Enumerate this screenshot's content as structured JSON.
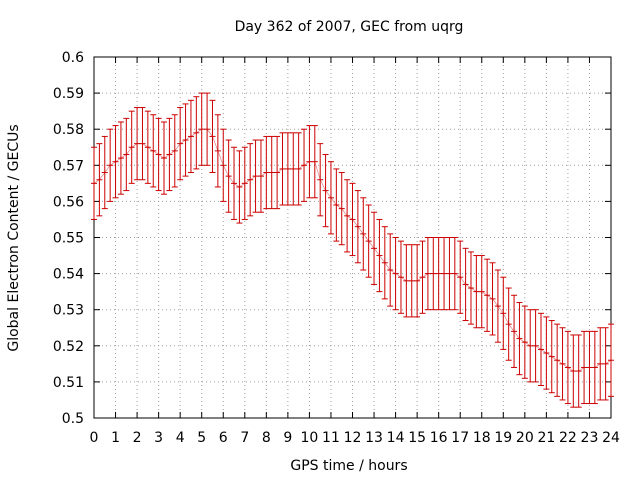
{
  "chart_data": {
    "type": "line",
    "title": "Day 362 of 2007, GEC from uqrg",
    "xlabel": "GPS time / hours",
    "ylabel": "Global Electron Content / GECUs",
    "xlim": [
      0,
      24
    ],
    "ylim": [
      0.5,
      0.6
    ],
    "xticks": [
      0,
      1,
      2,
      3,
      4,
      5,
      6,
      7,
      8,
      9,
      10,
      11,
      12,
      13,
      14,
      15,
      16,
      17,
      18,
      19,
      20,
      21,
      22,
      23,
      24
    ],
    "yticks": [
      0.5,
      0.51,
      0.52,
      0.53,
      0.54,
      0.55,
      0.56,
      0.57,
      0.58,
      0.59,
      0.6
    ],
    "grid": true,
    "color": "#cc0000",
    "error": 0.01,
    "series": [
      {
        "x": [
          0,
          0.25,
          0.5,
          0.75,
          1,
          1.25,
          1.5,
          1.75,
          2,
          2.25,
          2.5,
          2.75,
          3,
          3.25,
          3.5,
          3.75,
          4,
          4.25,
          4.5,
          4.75,
          5,
          5.25,
          5.5,
          5.75,
          6,
          6.25,
          6.5,
          6.75,
          7,
          7.25,
          7.5,
          7.75,
          8,
          8.25,
          8.5,
          8.75,
          9,
          9.25,
          9.5,
          9.75,
          10,
          10.25,
          10.5,
          10.75,
          11,
          11.25,
          11.5,
          11.75,
          12,
          12.25,
          12.5,
          12.75,
          13,
          13.25,
          13.5,
          13.75,
          14,
          14.25,
          14.5,
          14.75,
          15,
          15.25,
          15.5,
          15.75,
          16,
          16.25,
          16.5,
          16.75,
          17,
          17.25,
          17.5,
          17.75,
          18,
          18.25,
          18.5,
          18.75,
          19,
          19.25,
          19.5,
          19.75,
          20,
          20.25,
          20.5,
          20.75,
          21,
          21.25,
          21.5,
          21.75,
          22,
          22.25,
          22.5,
          22.75,
          23,
          23.25,
          23.5,
          23.75,
          24
        ],
        "y": [
          0.565,
          0.566,
          0.568,
          0.57,
          0.571,
          0.572,
          0.573,
          0.575,
          0.576,
          0.576,
          0.575,
          0.574,
          0.573,
          0.572,
          0.573,
          0.574,
          0.576,
          0.577,
          0.578,
          0.579,
          0.58,
          0.58,
          0.578,
          0.574,
          0.57,
          0.567,
          0.565,
          0.564,
          0.565,
          0.566,
          0.567,
          0.567,
          0.568,
          0.568,
          0.568,
          0.569,
          0.569,
          0.569,
          0.569,
          0.57,
          0.571,
          0.571,
          0.566,
          0.563,
          0.561,
          0.559,
          0.558,
          0.556,
          0.555,
          0.553,
          0.551,
          0.549,
          0.547,
          0.545,
          0.543,
          0.541,
          0.54,
          0.539,
          0.538,
          0.538,
          0.538,
          0.539,
          0.54,
          0.54,
          0.54,
          0.54,
          0.54,
          0.54,
          0.539,
          0.537,
          0.536,
          0.535,
          0.535,
          0.534,
          0.533,
          0.531,
          0.529,
          0.526,
          0.524,
          0.522,
          0.521,
          0.52,
          0.52,
          0.519,
          0.518,
          0.517,
          0.516,
          0.515,
          0.514,
          0.513,
          0.513,
          0.514,
          0.514,
          0.514,
          0.515,
          0.515,
          0.516
        ]
      }
    ]
  }
}
